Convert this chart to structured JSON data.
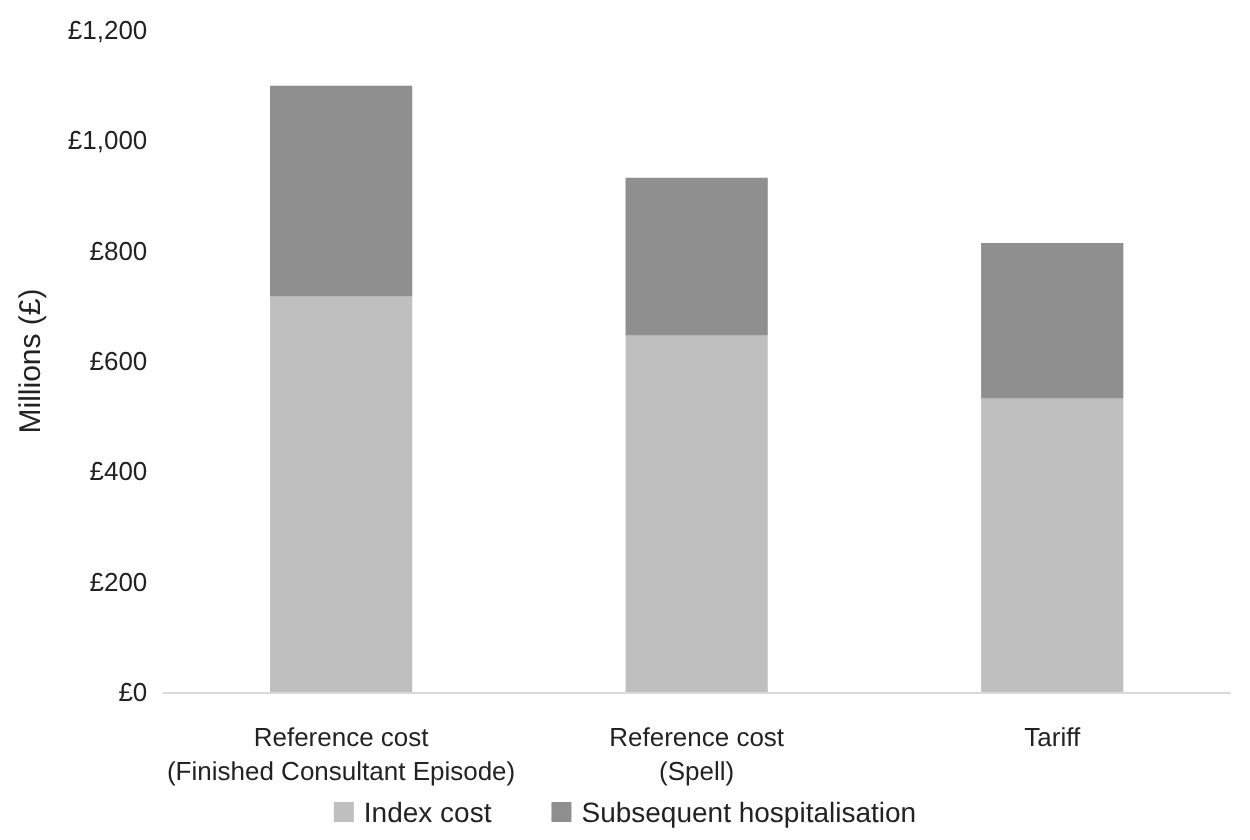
{
  "chart_data": {
    "type": "bar",
    "stacked": true,
    "ylabel": "Millions (£)",
    "categories": [
      "Reference cost\n(Finished Consultant Episode)",
      "Reference cost\n(Spell)",
      "Tariff"
    ],
    "series": [
      {
        "name": "Index cost",
        "color": "#bfbfbf",
        "values": [
          717,
          646,
          532
        ]
      },
      {
        "name": "Subsequent hospitalisation",
        "color": "#8f8f8f",
        "values": [
          382,
          286,
          282
        ]
      }
    ],
    "ylim": [
      0,
      1200
    ],
    "yticks": [
      {
        "value": 0,
        "label": "£0"
      },
      {
        "value": 200,
        "label": "£200"
      },
      {
        "value": 400,
        "label": "£400"
      },
      {
        "value": 600,
        "label": "£600"
      },
      {
        "value": 800,
        "label": "£800"
      },
      {
        "value": 1000,
        "label": "£1,000"
      },
      {
        "value": 1200,
        "label": "£1,200"
      }
    ],
    "grid": false,
    "legend": "bottom"
  }
}
